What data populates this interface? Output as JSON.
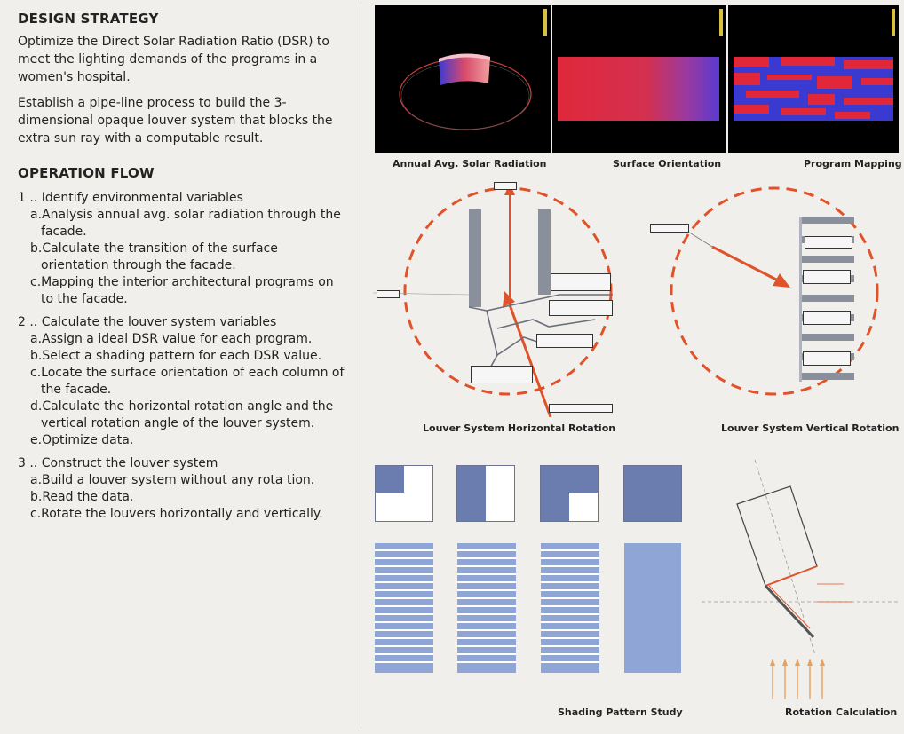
{
  "design_strategy": {
    "title": "DESIGN STRATEGY",
    "para1": "Optimize the Direct Solar Radiation Ratio (DSR) to meet the lighting demands of the programs in a women's hospital.",
    "para2": "Establish a pipe-line process to build the 3-dimensional opaque louver system that blocks the extra sun ray with a computable result."
  },
  "operation_flow": {
    "title": "OPERATION FLOW",
    "steps": [
      {
        "head": "1 .. Identify environmental variables",
        "subs": [
          "a.Analysis annual avg. solar radiation through the facade.",
          "b.Calculate the transition of the surface orientation through the facade.",
          "c.Mapping the interior architectural programs on to the facade."
        ]
      },
      {
        "head": "2 .. Calculate the louver system variables",
        "subs": [
          "a.Assign a ideal DSR value for each program.",
          "b.Select a shading pattern for each DSR value.",
          "c.Locate the surface orientation of each column of the facade.",
          "d.Calculate the horizontal rotation angle and the vertical rotation angle of the louver system.",
          "e.Optimize data."
        ]
      },
      {
        "head": "3 .. Construct the louver system",
        "subs": [
          "a.Build a louver system without any rota tion.",
          "b.Read the data.",
          "c.Rotate the louvers horizontally and vertically."
        ]
      }
    ]
  },
  "captions": {
    "solar": "Annual Avg. Solar Radiation",
    "orientation": "Surface Orientation",
    "program": "Program Mapping",
    "horizontal": "Louver System Horizontal Rotation",
    "vertical": "Louver System Vertical Rotation",
    "shading": "Shading Pattern Study",
    "rotation": "Rotation Calculation"
  },
  "colors": {
    "accent": "#e0522a",
    "louver": "#8a8f9c",
    "pattern": "#6b7cae",
    "pattern_light": "#8ea5d6"
  }
}
